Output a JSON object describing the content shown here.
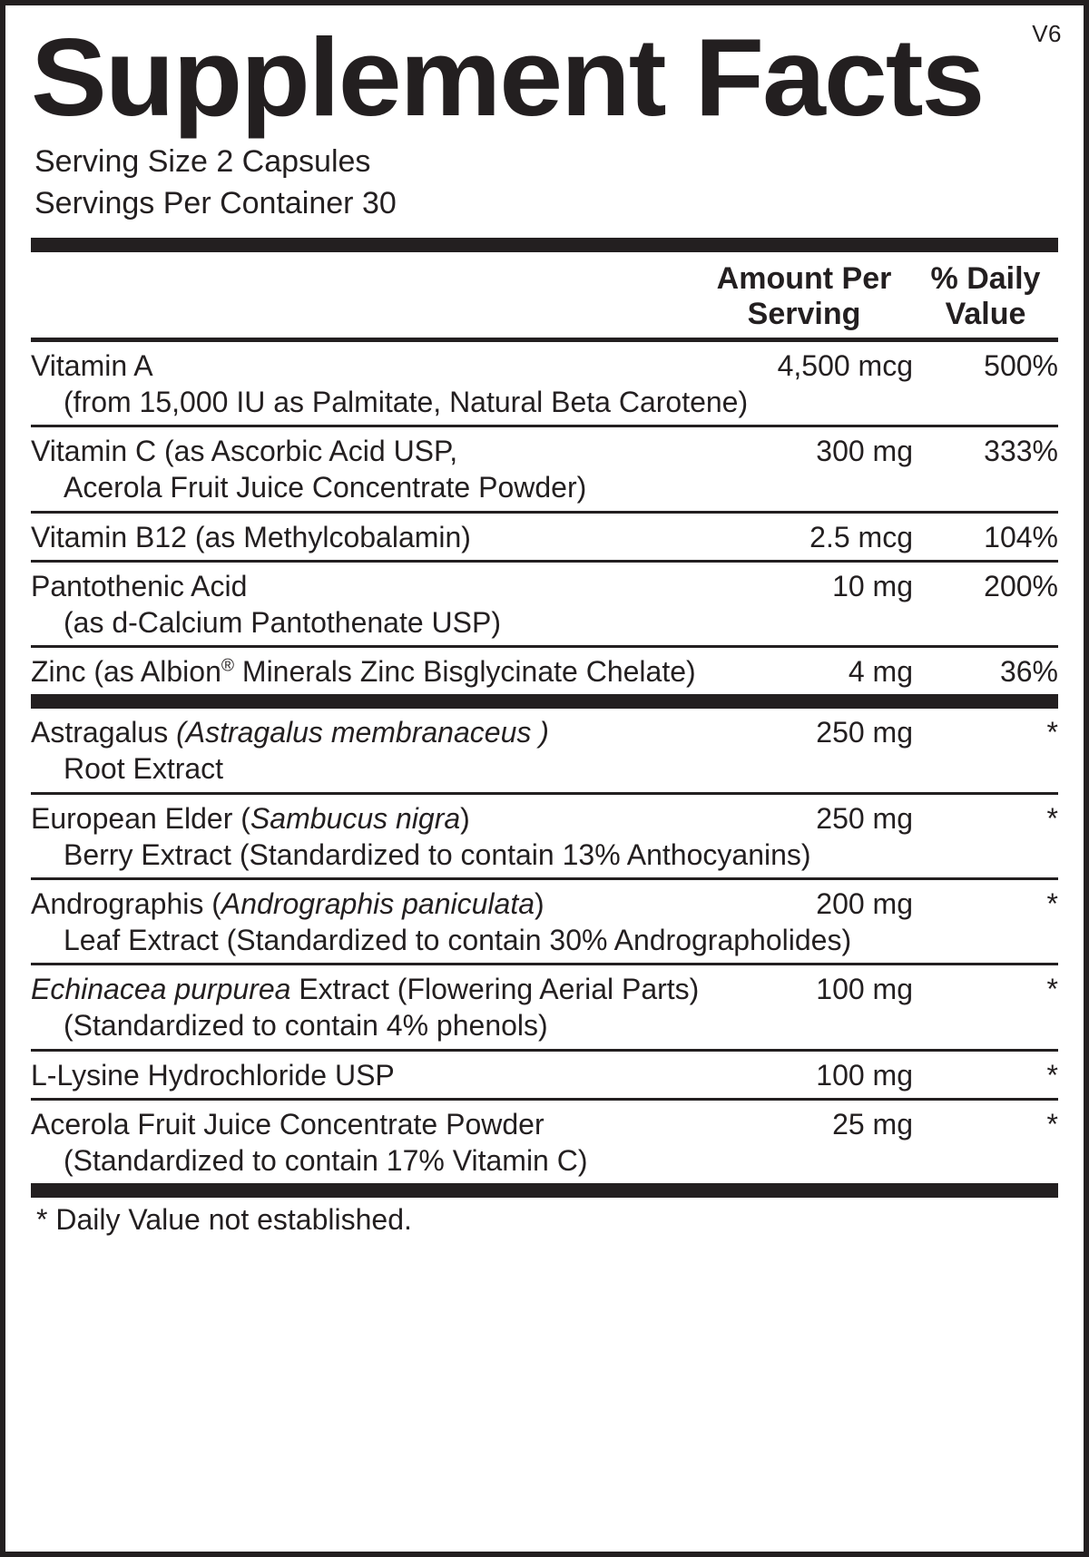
{
  "version": "V6",
  "title": "Supplement Facts",
  "serving_size_label": "Serving Size 2 Capsules",
  "servings_per_container_label": "Servings Per Container 30",
  "headers": {
    "amount_line1": "Amount Per",
    "amount_line2": "Serving",
    "dv_line1": "% Daily",
    "dv_line2": "Value"
  },
  "section1": [
    {
      "name": "Vitamin A",
      "sub": "(from 15,000 IU as Palmitate, Natural Beta Carotene)",
      "amount": "4,500 mcg",
      "dv": "500%"
    },
    {
      "name": "Vitamin C  (as Ascorbic Acid USP,",
      "sub": "Acerola Fruit Juice Concentrate Powder)",
      "amount": "300 mg",
      "dv": "333%"
    },
    {
      "name": "Vitamin B12 (as Methylcobalamin)",
      "sub": "",
      "amount": "2.5 mcg",
      "dv": "104%"
    },
    {
      "name": "Pantothenic Acid",
      "sub": "(as d-Calcium Pantothenate USP)",
      "amount": "10 mg",
      "dv": "200%"
    },
    {
      "name_html": "Zinc (as Albion<sup>®</sup> Minerals Zinc Bisglycinate Chelate)",
      "sub": "",
      "amount": "4 mg",
      "dv": "36%"
    }
  ],
  "section2": [
    {
      "name_html": "Astragalus <span class='ital'>(Astragalus membranaceus )</span>",
      "sub": "Root Extract",
      "amount": "250 mg",
      "dv": "*"
    },
    {
      "name_html": "European Elder (<span class='ital'>Sambucus nigra</span>)",
      "sub": "Berry Extract (Standardized to contain 13% Anthocyanins)",
      "amount": "250 mg",
      "dv": "*"
    },
    {
      "name_html": "Andrographis (<span class='ital'>Andrographis paniculata</span>)",
      "sub": "Leaf Extract  (Standardized to contain 30% Andrographolides)",
      "amount": "200 mg",
      "dv": "*"
    },
    {
      "name_html": "<span class='ital'>Echinacea purpurea</span> Extract (Flowering Aerial Parts)",
      "sub": "(Standardized to contain 4% phenols)",
      "amount": "100 mg",
      "dv": "*"
    },
    {
      "name": "L-Lysine Hydrochloride USP",
      "sub": "",
      "amount": "100 mg",
      "dv": "*"
    },
    {
      "name": "Acerola Fruit Juice Concentrate Powder",
      "sub": "(Standardized to contain 17% Vitamin C)",
      "amount": "25 mg",
      "dv": "*"
    }
  ],
  "footnote": "* Daily Value not established."
}
